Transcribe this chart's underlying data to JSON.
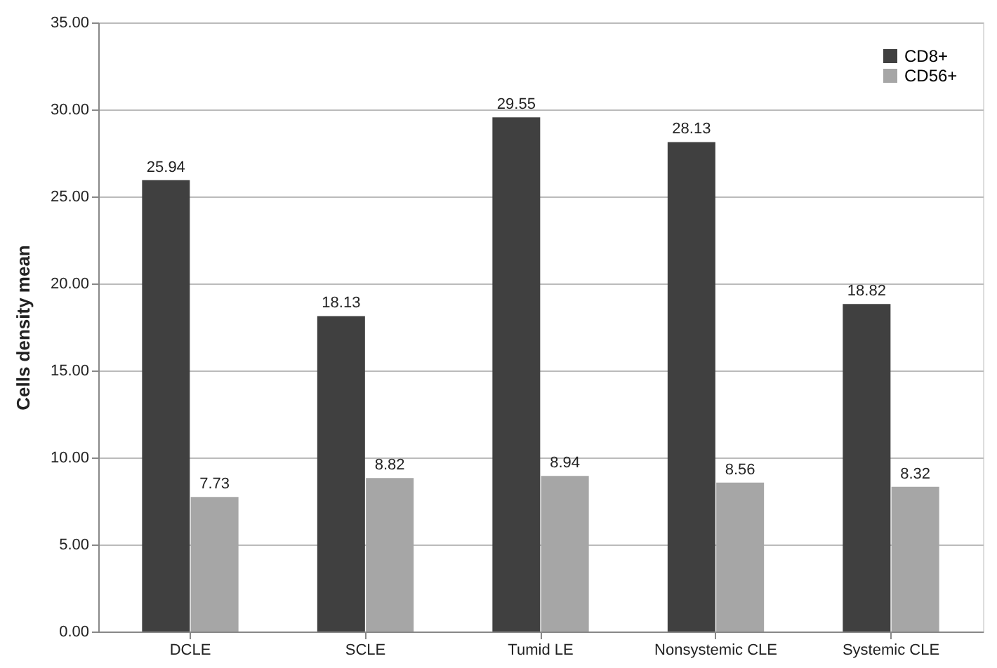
{
  "chart_data": {
    "type": "bar",
    "ylabel": "Cells density mean",
    "categories": [
      "DCLE",
      "SCLE",
      "Tumid LE",
      "Nonsystemic CLE",
      "Systemic CLE"
    ],
    "series": [
      {
        "name": "CD8+",
        "color": "#404040",
        "values": [
          25.94,
          18.13,
          29.55,
          28.13,
          18.82
        ]
      },
      {
        "name": "CD56+",
        "color": "#a6a6a6",
        "values": [
          7.73,
          8.82,
          8.94,
          8.56,
          8.32
        ]
      }
    ],
    "ylim": [
      0,
      35
    ],
    "yticks": [
      {
        "value": 0,
        "label": "0.00"
      },
      {
        "value": 5,
        "label": "5.00"
      },
      {
        "value": 10,
        "label": "10.00"
      },
      {
        "value": 15,
        "label": "15.00"
      },
      {
        "value": 20,
        "label": "20.00"
      },
      {
        "value": 25,
        "label": "25.00"
      },
      {
        "value": 30,
        "label": "30.00"
      },
      {
        "value": 35,
        "label": "35.00"
      }
    ],
    "grid": "y",
    "legend": "top right",
    "data_labels": true
  }
}
